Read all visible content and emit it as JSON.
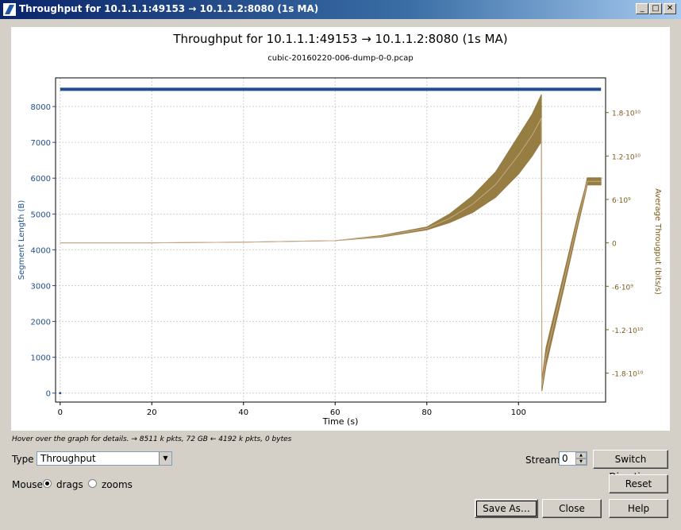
{
  "window": {
    "title": "Throughput for 10.1.1.1:49153 → 10.1.1.2:8080 (1s MA)",
    "buttons": [
      "_",
      "□",
      "✕"
    ]
  },
  "chart_data": {
    "type": "line",
    "title": "Throughput for 10.1.1.1:49153 → 10.1.1.2:8080 (1s MA)",
    "subtitle": "cubic-20160220-006-dump-0-0.pcap",
    "xlabel": "Time (s)",
    "ylabel_left": "Segment Length (B)",
    "ylabel_right": "Average Througput (bits/s)",
    "xlim": [
      -1,
      119
    ],
    "ylim_left": [
      -250,
      8800
    ],
    "ylim_right": [
      -22000000000.0,
      22800000000.0
    ],
    "x_ticks": [
      "0",
      "20",
      "40",
      "60",
      "80",
      "100"
    ],
    "y_left_ticks": [
      "0",
      "1000",
      "2000",
      "3000",
      "4000",
      "5000",
      "6000",
      "7000",
      "8000"
    ],
    "y_right_ticks": [
      "1.8·10¹⁰",
      "1.2·10¹⁰",
      "6·10⁹",
      "0",
      "-6·10⁹",
      "-1.2·10¹⁰",
      "-1.8·10¹⁰"
    ],
    "grid": true,
    "series": [
      {
        "axis": "left",
        "color": "#1f4e8c",
        "x": [
          0,
          118
        ],
        "y": [
          8480,
          8480
        ]
      },
      {
        "axis": "right",
        "color": "#8b6f2e",
        "x": [
          0,
          20,
          40,
          60,
          70,
          80,
          85,
          90,
          95,
          100,
          103,
          105,
          105.1,
          106,
          110,
          113,
          114.5,
          115,
          117,
          118
        ],
        "y_low": [
          0,
          0,
          100000000.0,
          300000000.0,
          800000000.0,
          1800000000.0,
          2800000000.0,
          4200000000.0,
          6300000000.0,
          9500000000.0,
          12000000000.0,
          14000000000.0,
          -20500000000.0,
          -17000000000.0,
          -6000000000.0,
          2500000000.0,
          6500000000.0,
          8000000000.0,
          8000000000.0,
          8000000000.0
        ],
        "y_high": [
          0,
          0,
          100000000.0,
          300000000.0,
          1000000000.0,
          2200000000.0,
          4000000000.0,
          6500000000.0,
          9800000000.0,
          14800000000.0,
          17800000000.0,
          20500000000.0,
          -19000000000.0,
          -14500000000.0,
          -4000000000.0,
          4000000000.0,
          7500000000.0,
          9000000000.0,
          9000000000.0,
          9000000000.0
        ]
      }
    ]
  },
  "hint": "Hover over the graph for details. → 8511 k pkts, 72 GB ← 4192 k pkts, 0 bytes",
  "controls": {
    "type_label": "Type",
    "type_value": "Throughput",
    "mouse_label": "Mouse",
    "drags_label": "drags",
    "zooms_label": "zooms",
    "stream_label": "Stream",
    "stream_value": "0",
    "switch_direction": "Switch Direction",
    "reset": "Reset",
    "save_as": "Save As…",
    "close": "Close",
    "help": "Help"
  }
}
